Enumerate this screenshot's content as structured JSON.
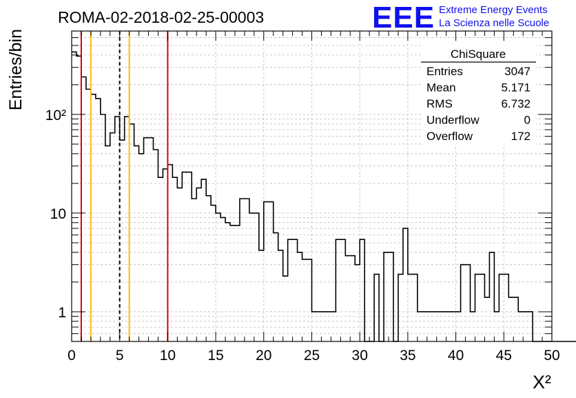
{
  "title": "ROMA-02-2018-02-25-00003",
  "logo": {
    "mark": "EEE",
    "line1": "Extreme Energy Events",
    "line2": "La Scienza nelle Scuole",
    "color": "#1010ee"
  },
  "stats_box": {
    "title": "ChiSquare",
    "rows": [
      {
        "label": "Entries",
        "value": "3047"
      },
      {
        "label": "Mean",
        "value": "5.171"
      },
      {
        "label": "RMS",
        "value": "6.732"
      },
      {
        "label": "Underflow",
        "value": "0"
      },
      {
        "label": "Overflow",
        "value": "172"
      }
    ]
  },
  "chart_data": {
    "type": "bar",
    "style": "step-histogram",
    "xlabel": "X²",
    "ylabel": "Entries/bin",
    "xlim": [
      0,
      50
    ],
    "ylim": [
      0.5,
      700
    ],
    "yscale": "log",
    "bin_width": 0.5,
    "x_ticks": [
      "0",
      "5",
      "10",
      "15",
      "20",
      "25",
      "30",
      "35",
      "40",
      "45",
      "50"
    ],
    "y_ticks": [
      {
        "value": 1,
        "label": "1"
      },
      {
        "value": 10,
        "label": "10"
      },
      {
        "value": 100,
        "label": "10²"
      }
    ],
    "grid": true,
    "values": [
      430,
      390,
      240,
      180,
      160,
      145,
      100,
      48,
      65,
      95,
      55,
      95,
      80,
      48,
      40,
      58,
      58,
      44,
      23,
      28,
      31,
      23,
      18,
      26,
      26,
      14,
      18,
      22,
      15,
      12,
      10,
      9,
      8,
      7.5,
      7.5,
      14,
      14,
      10,
      10,
      4.2,
      13,
      13,
      6.3,
      4.2,
      2.3,
      5.4,
      5.4,
      4.0,
      3.4,
      3.4,
      1.0,
      1.0,
      1.0,
      1.0,
      1.0,
      5.4,
      5.4,
      3.7,
      3.7,
      3.0,
      5.4,
      0,
      0,
      2.4,
      0,
      4.0,
      4.0,
      0,
      2.4,
      7.0,
      2.4,
      2.4,
      1.0,
      1.0,
      1.0,
      1.0,
      1.0,
      1.0,
      1.0,
      1.0,
      1.0,
      3.0,
      3.0,
      1.0,
      2.4,
      2.4,
      1.4,
      4.0,
      1.0,
      2.4,
      2.4,
      1.4,
      1.4,
      1.0,
      1.0,
      1.0,
      0,
      0,
      0,
      0,
      0,
      0,
      0,
      0,
      0,
      0,
      0,
      0,
      0,
      0,
      0,
      0,
      0,
      0,
      0,
      0
    ],
    "values_note_from_picture": "read off log scale",
    "vertical_lines": [
      {
        "x": 1,
        "color": "#dd0000",
        "style": "solid"
      },
      {
        "x": 2,
        "color": "#ffbb00",
        "style": "solid"
      },
      {
        "x": 5,
        "color": "#000000",
        "style": "dashed"
      },
      {
        "x": 6,
        "color": "#ffbb00",
        "style": "solid"
      },
      {
        "x": 10,
        "color": "#dd0000",
        "style": "solid"
      }
    ]
  }
}
